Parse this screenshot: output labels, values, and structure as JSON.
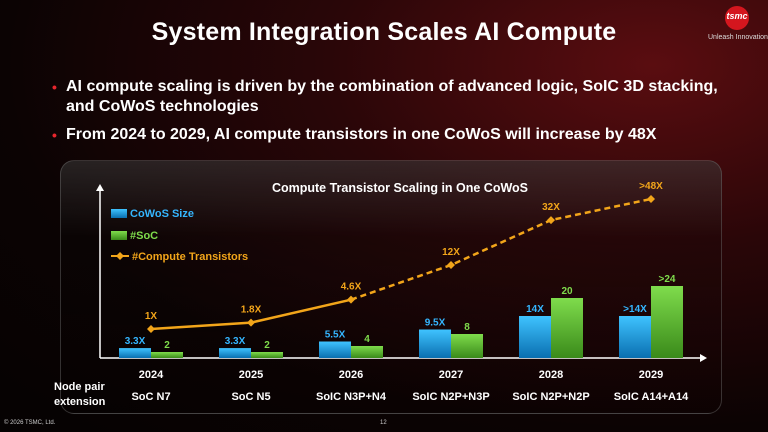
{
  "header": {
    "title": "System Integration Scales AI Compute"
  },
  "logo": {
    "brand": "tsmc",
    "tagline": "Unleash Innovation"
  },
  "bullets": [
    "AI compute scaling is driven by the combination of advanced logic, SoIC 3D stacking, and CoWoS technologies",
    "From 2024 to 2029, AI compute transistors in one CoWoS will increase by 48X"
  ],
  "row_label": {
    "line1": "Node pair",
    "line2": "extension"
  },
  "footer": {
    "copyright": "© 2026 TSMC, Ltd.",
    "page": "12"
  },
  "colors": {
    "accent": "#e8262d",
    "cowos": "#1aa3e8",
    "soic": "#5ab82e",
    "line": "#f2a51a"
  },
  "chart_data": {
    "type": "bar",
    "title": "Compute Transistor Scaling in One CoWoS",
    "categories": [
      "2024",
      "2025",
      "2026",
      "2027",
      "2028",
      "2029"
    ],
    "node_pairs": [
      "SoC N7",
      "SoC N5",
      "SoIC N3P+N4",
      "SoIC N2P+N3P",
      "SoIC N2P+N2P",
      "SoIC A14+A14"
    ],
    "series": [
      {
        "name": "CoWoS Size",
        "type": "bar",
        "values": [
          3.3,
          3.3,
          5.5,
          9.5,
          14,
          14
        ],
        "labels": [
          "3.3X",
          "3.3X",
          "5.5X",
          "9.5X",
          "14X",
          ">14X"
        ]
      },
      {
        "name": "#SoC",
        "type": "bar",
        "values": [
          2,
          2,
          4,
          8,
          20,
          24
        ],
        "labels": [
          "2",
          "2",
          "4",
          "8",
          "20",
          ">24"
        ]
      },
      {
        "name": "#Compute Transistors",
        "type": "line",
        "values": [
          1,
          1.8,
          4.6,
          12,
          32,
          48
        ],
        "labels": [
          "1X",
          "1.8X",
          "4.6X",
          "12X",
          "32X",
          ">48X"
        ]
      }
    ],
    "grid": false,
    "legend": "top-left"
  }
}
